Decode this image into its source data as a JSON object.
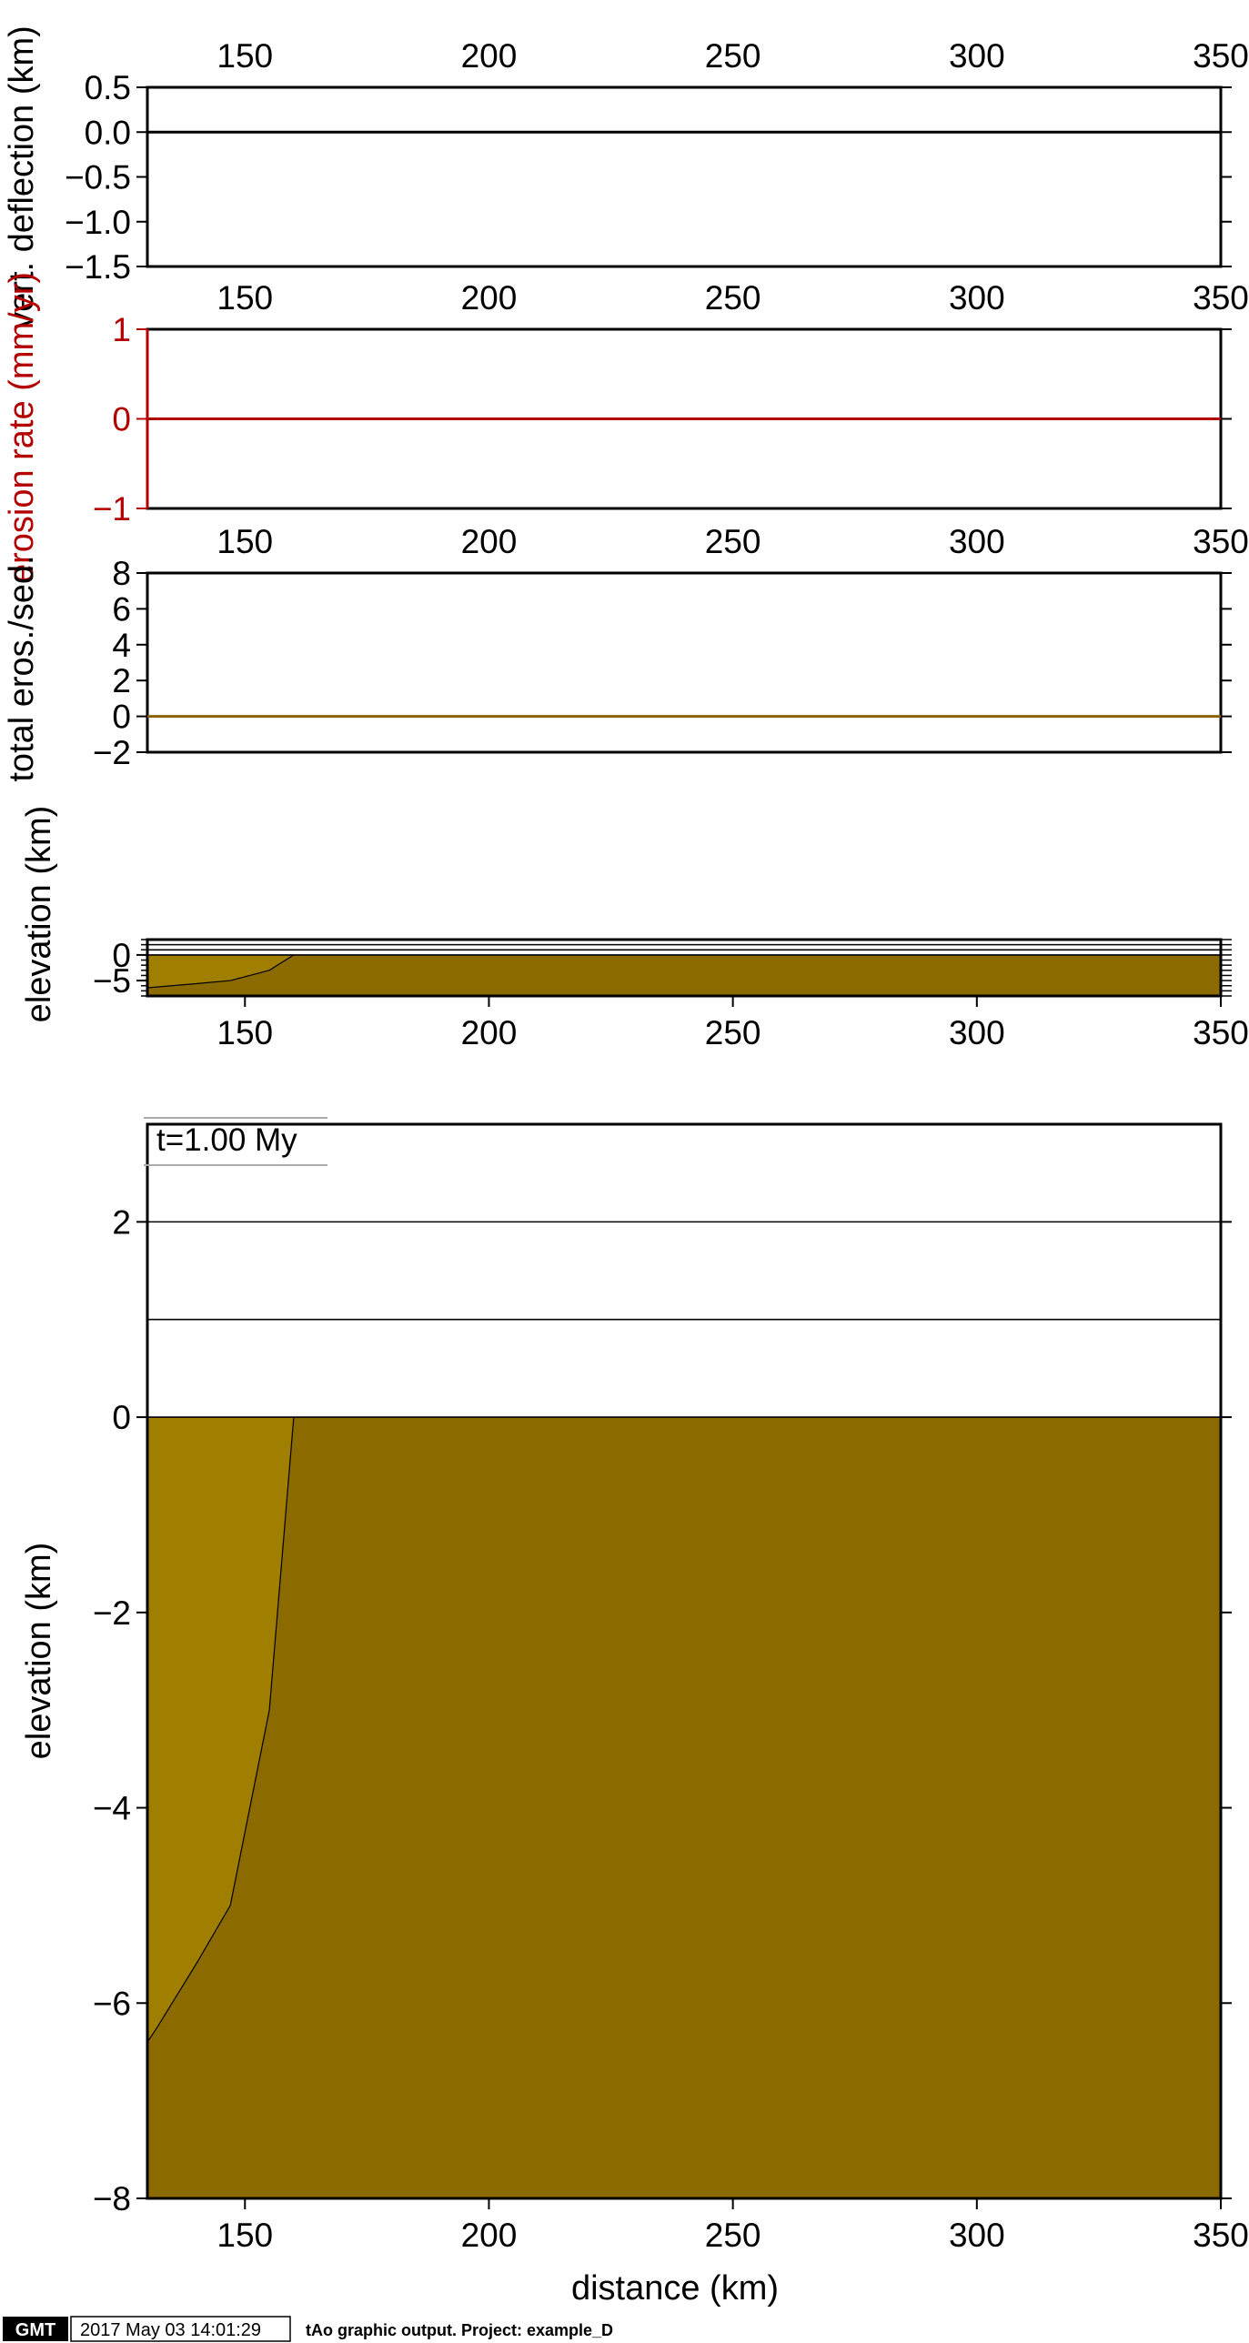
{
  "chart_data": [
    {
      "id": "deflection",
      "type": "line",
      "ylabel": "vert. deflection (km)",
      "xlim": [
        130,
        350
      ],
      "ylim": [
        -1.5,
        0.5
      ],
      "x_ticks": [
        150,
        200,
        250,
        300,
        350
      ],
      "x_tick_labels": [
        "150",
        "200",
        "250",
        "300",
        "350"
      ],
      "y_ticks": [
        0.5,
        0.0,
        -0.5,
        -1.0,
        -1.5
      ],
      "y_tick_labels": [
        "0.5",
        "0.0",
        "−0.5",
        "−1.0",
        "−1.5"
      ],
      "series": [
        {
          "x": [
            130,
            350
          ],
          "y": [
            0,
            0
          ],
          "color": "#000000"
        }
      ]
    },
    {
      "id": "erosion-rate",
      "type": "line",
      "ylabel": "erosion rate (mm/yr)",
      "label_color": "#b30000",
      "xlim": [
        130,
        350
      ],
      "ylim": [
        -1,
        1
      ],
      "x_ticks": [
        150,
        200,
        250,
        300,
        350
      ],
      "x_tick_labels": [
        "150",
        "200",
        "250",
        "300",
        "350"
      ],
      "y_ticks": [
        1,
        0,
        -1
      ],
      "y_tick_labels": [
        "1",
        "0",
        "−1"
      ],
      "series": [
        {
          "x": [
            130,
            350
          ],
          "y": [
            0,
            0
          ],
          "color": "#b30000"
        }
      ]
    },
    {
      "id": "total-erosion",
      "type": "line",
      "ylabel": "total eros./sed.",
      "xlim": [
        130,
        350
      ],
      "ylim": [
        -2,
        8
      ],
      "x_ticks": [
        150,
        200,
        250,
        300,
        350
      ],
      "x_tick_labels": [
        "150",
        "200",
        "250",
        "300",
        "350"
      ],
      "y_ticks": [
        8,
        6,
        4,
        2,
        0,
        -2
      ],
      "y_tick_labels": [
        "8",
        "6",
        "4",
        "2",
        "0",
        "−2"
      ],
      "series": [
        {
          "x": [
            130,
            350
          ],
          "y": [
            0,
            0
          ],
          "color": "#8a6000"
        }
      ]
    },
    {
      "id": "elevation-small",
      "type": "area",
      "ylabel": "elevation (km)",
      "xlim": [
        130,
        350
      ],
      "ylim": [
        -8,
        3
      ],
      "x_ticks": [
        150,
        200,
        250,
        300,
        350
      ],
      "x_tick_labels": [
        "150",
        "200",
        "250",
        "300",
        "350"
      ],
      "y_ticks": [
        0,
        -5
      ],
      "y_tick_labels": [
        "0",
        "−5"
      ],
      "levels": [
        0,
        1,
        2
      ]
    },
    {
      "id": "elevation-main",
      "type": "area",
      "title": "t=1.00 My",
      "xlabel": "distance (km)",
      "ylabel": "elevation (km)",
      "xlim": [
        130,
        350
      ],
      "ylim": [
        -8,
        3
      ],
      "x_ticks": [
        150,
        200,
        250,
        300,
        350
      ],
      "x_tick_labels": [
        "150",
        "200",
        "250",
        "300",
        "350"
      ],
      "y_ticks": [
        2,
        0,
        -2,
        -4,
        -6,
        -8
      ],
      "y_tick_labels": [
        "2",
        "0",
        "−2",
        "−4",
        "−6",
        "−8"
      ],
      "levels": [
        0,
        1,
        2
      ],
      "basement": {
        "color": "#8b6a00",
        "top": 0,
        "bottom": -8
      },
      "sediment": {
        "color": "#a07f00",
        "boundary_x": [
          130,
          132,
          140,
          147,
          155,
          160
        ],
        "boundary_y": [
          -6.4,
          -6.25,
          -5.6,
          -5.0,
          -3.0,
          0.0
        ]
      }
    }
  ],
  "footer": {
    "logo": "GMT",
    "timestamp": "2017 May 03 14:01:29",
    "caption": "tAo graphic output. Project: example_D"
  }
}
